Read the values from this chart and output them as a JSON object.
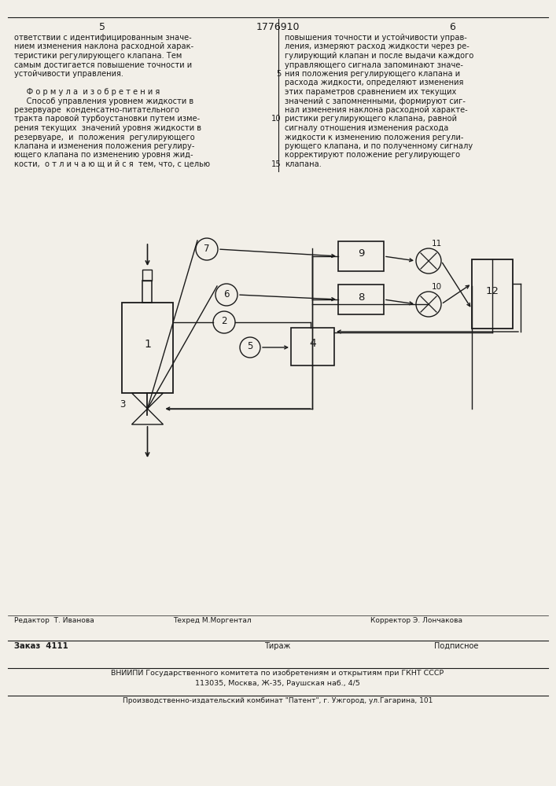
{
  "bg_color": "#f2efe8",
  "line_color": "#1a1a1a",
  "text_color": "#1a1a1a",
  "page_left": "5",
  "page_center": "1776910",
  "page_right": "6",
  "left_lines": [
    "ответствии с идентифицированным значе-",
    "нием изменения наклона расходной харак-",
    "теристики регулирующего клапана. Тем",
    "самым достигается повышение точности и",
    "устойчивости управления.",
    "",
    "     Ф о р м у л а  и з о б р е т е н и я",
    "     Способ управления уровнем жидкости в",
    "резервуаре  конденсатно-питательного",
    "тракта паровой турбоустановки путем изме-",
    "рения текущих  значений уровня жидкости в",
    "резервуаре,  и  положения  регулирующего",
    "клапана и изменения положения регулиру-",
    "ющего клапана по изменению уровня жид-",
    "кости,  о т л и ч а ю щ и й с я  тем, что, с целью"
  ],
  "right_lines": [
    "повышения точности и устойчивости управ-",
    "ления, измеряют расход жидкости через ре-",
    "гулирующий клапан и после выдачи каждого",
    "управляющего сигнала запоминают значе-",
    "ния положения регулирующего клапана и",
    "расхода жидкости, определяют изменения",
    "этих параметров сравнением их текущих",
    "значений с запомненными, формируют сиг-",
    "нал изменения наклона расходной характе-",
    "ристики регулирующего клапана, равной",
    "сигналу отношения изменения расхода",
    "жидкости к изменению положения регули-",
    "рующего клапана, и по полученному сигналу",
    "корректируют положение регулирующего",
    "клапана."
  ],
  "line_num_indices": [
    4,
    9,
    14
  ],
  "line_num_values": [
    "5",
    "10",
    "15"
  ]
}
